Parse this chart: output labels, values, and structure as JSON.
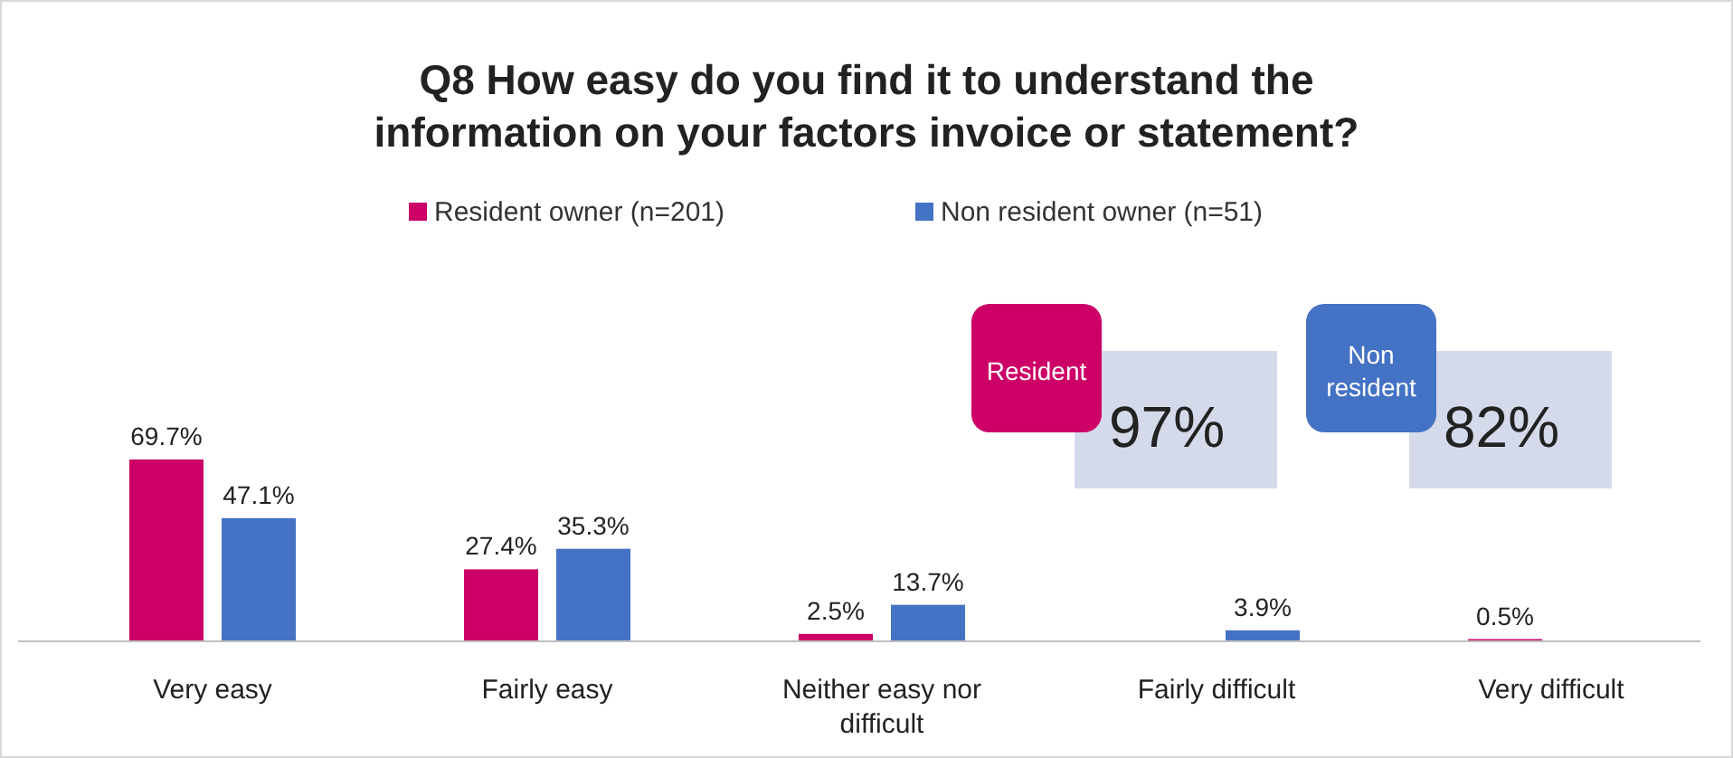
{
  "chart_data": {
    "type": "bar",
    "title": "Q8 How easy do you find it to understand the information on your factors invoice or statement?",
    "categories": [
      "Very easy",
      "Fairly easy",
      "Neither easy nor difficult",
      "Fairly difficult",
      "Very difficult"
    ],
    "series": [
      {
        "name": "Resident owner (n=201)",
        "color": "#cc0066",
        "values": [
          69.7,
          27.4,
          2.5,
          null,
          0.5
        ],
        "value_labels": [
          "69.7%",
          "27.4%",
          "2.5%",
          null,
          "0.5%"
        ]
      },
      {
        "name": "Non resident owner (n=51)",
        "color": "#4472c4",
        "values": [
          47.1,
          35.3,
          13.7,
          3.9,
          null
        ],
        "value_labels": [
          "47.1%",
          "35.3%",
          "13.7%",
          "3.9%",
          null
        ]
      }
    ],
    "legend": "top",
    "grid": false,
    "annotations": [
      "Resident",
      "97%",
      "Non resident",
      "82%"
    ]
  }
}
